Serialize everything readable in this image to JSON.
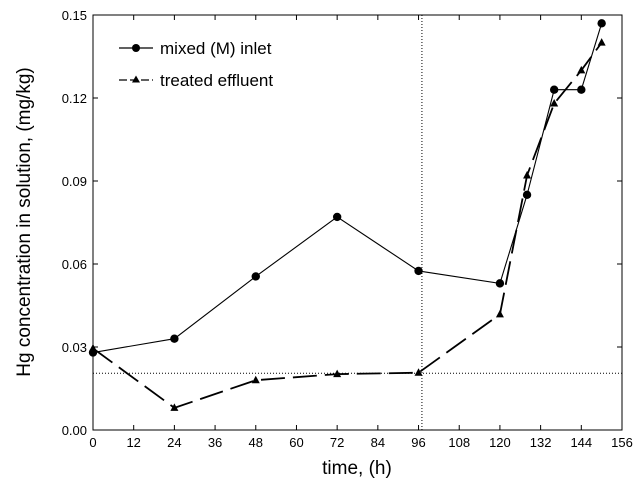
{
  "chart_data": {
    "type": "line",
    "title": "",
    "xlabel": "time, (h)",
    "ylabel": "Hg concentration in solution, (mg/kg)",
    "xlim": [
      0,
      156
    ],
    "ylim": [
      0,
      0.15
    ],
    "xticks": [
      0,
      12,
      24,
      36,
      48,
      60,
      72,
      84,
      96,
      108,
      120,
      132,
      144,
      156
    ],
    "yticks": [
      0.0,
      0.03,
      0.06,
      0.09,
      0.12,
      0.15
    ],
    "ytick_labels": [
      "0.00",
      "0.03",
      "0.06",
      "0.09",
      "0.12",
      "0.15"
    ],
    "grid": false,
    "legend_position": "top-left",
    "series": [
      {
        "name": "mixed (M) inlet",
        "marker": "circle",
        "line_style": "solid",
        "color": "#000000",
        "x": [
          0,
          24,
          48,
          72,
          96,
          120,
          128,
          136,
          144,
          150
        ],
        "y": [
          0.028,
          0.033,
          0.0555,
          0.077,
          0.0575,
          0.053,
          0.085,
          0.123,
          0.123,
          0.147
        ]
      },
      {
        "name": "treated effluent",
        "marker": "triangle",
        "line_style": "dashed",
        "color": "#000000",
        "x": [
          0,
          24,
          48,
          72,
          96,
          120,
          128,
          136,
          144,
          150
        ],
        "y": [
          0.0295,
          0.008,
          0.018,
          0.0202,
          0.0207,
          0.0418,
          0.092,
          0.118,
          0.13,
          0.14
        ]
      }
    ],
    "reference_lines": [
      {
        "orientation": "vertical",
        "value": 97,
        "style": "dotted"
      },
      {
        "orientation": "horizontal",
        "value": 0.0205,
        "style": "dotted"
      }
    ]
  }
}
